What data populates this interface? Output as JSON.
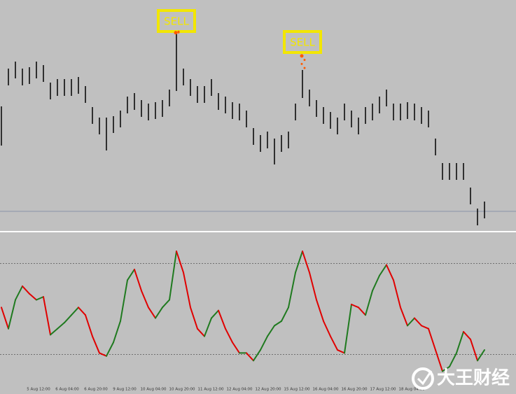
{
  "chart_data": [
    {
      "type": "ohlc",
      "color": "#000000",
      "high": [
        178,
        232,
        242,
        232,
        234,
        242,
        237,
        212,
        217,
        217,
        217,
        220,
        207,
        177,
        162,
        162,
        164,
        172,
        192,
        197,
        187,
        182,
        184,
        187,
        202,
        285,
        232,
        217,
        207,
        207,
        217,
        197,
        192,
        184,
        182,
        172,
        147,
        137,
        142,
        132,
        137,
        142,
        182,
        230,
        202,
        187,
        177,
        170,
        162,
        182,
        172,
        162,
        177,
        182,
        192,
        202,
        182,
        182,
        184,
        182,
        177,
        172,
        132,
        97,
        97,
        97,
        97,
        62,
        32,
        42
      ],
      "low": [
        122,
        208,
        218,
        208,
        210,
        218,
        213,
        188,
        193,
        193,
        193,
        196,
        183,
        153,
        138,
        115,
        140,
        148,
        168,
        173,
        163,
        158,
        160,
        163,
        178,
        200,
        208,
        193,
        183,
        183,
        193,
        173,
        168,
        160,
        158,
        148,
        123,
        113,
        118,
        95,
        113,
        118,
        158,
        190,
        178,
        163,
        153,
        146,
        138,
        158,
        148,
        138,
        153,
        158,
        168,
        178,
        158,
        158,
        160,
        158,
        153,
        148,
        108,
        73,
        73,
        73,
        73,
        38,
        8,
        18
      ],
      "ylim": [
        0,
        330
      ],
      "level": 28,
      "level_color": "#8a93a8",
      "annotations": [
        {
          "text": "SELL",
          "index": 25
        },
        {
          "text": "SELL",
          "index": 43
        }
      ],
      "annotation_color": "#f2e600",
      "signal_color": "#ff5a00"
    },
    {
      "type": "oscillator",
      "values": [
        51,
        37,
        56,
        65,
        60,
        56,
        58,
        33,
        37,
        41,
        46,
        51,
        46,
        32,
        21,
        19,
        28,
        42,
        69,
        76,
        62,
        51,
        44,
        51,
        56,
        88,
        74,
        51,
        37,
        32,
        44,
        49,
        37,
        28,
        21,
        21,
        16,
        23,
        32,
        39,
        42,
        51,
        74,
        88,
        74,
        56,
        42,
        32,
        23,
        21,
        53,
        51,
        46,
        62,
        72,
        79,
        69,
        51,
        39,
        44,
        39,
        37,
        23,
        9,
        12,
        21,
        35,
        30,
        16,
        23
      ],
      "ylim": [
        0,
        100
      ],
      "levels": [
        80,
        20
      ],
      "up_color": "#1f7a1f",
      "down_color": "#e00000",
      "xlabels": [
        "5 Aug 12:00",
        "6 Aug 04:00",
        "6 Aug 20:00",
        "9 Aug 12:00",
        "10 Aug 04:00",
        "10 Aug 20:00",
        "11 Aug 12:00",
        "12 Aug 04:00",
        "12 Aug 20:00",
        "15 Aug 12:00",
        "16 Aug 04:00",
        "16 Aug 20:00",
        "17 Aug 12:00",
        "18 Aug 04:00"
      ],
      "watermark": "大王财经"
    }
  ]
}
